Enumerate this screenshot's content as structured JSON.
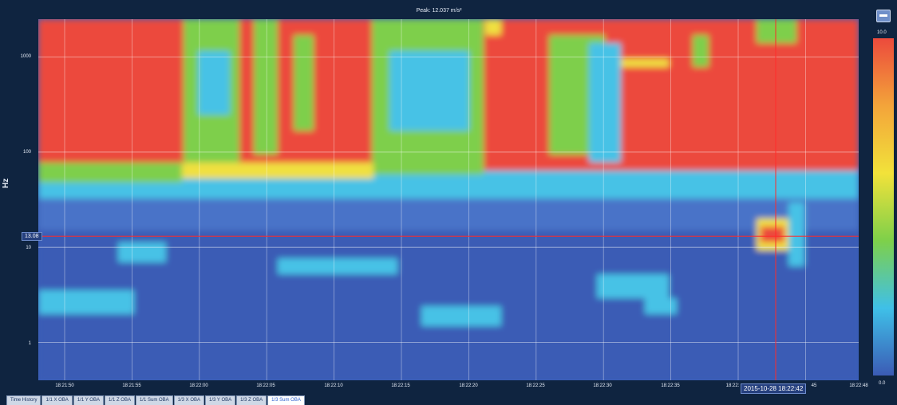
{
  "chart_data": {
    "type": "heatmap",
    "title": "Peak: 12.037 m/s²",
    "ylabel": "Hz",
    "yscale": "log",
    "ylim": [
      0.4,
      2500
    ],
    "yticks": [
      "1000",
      "100",
      "10",
      "1"
    ],
    "ytick_values": [
      1000,
      100,
      10,
      1
    ],
    "xticks": [
      "18:21:50",
      "18:21:55",
      "18:22:00",
      "18:22:05",
      "18:22:10",
      "18:22:15",
      "18:22:20",
      "18:22:25",
      "18:22:30",
      "18:22:35",
      "18:22:",
      "45",
      "18:22:48"
    ],
    "colorbar": {
      "min": "0.0",
      "max": "10.0",
      "colors": [
        "#3b5bb5",
        "#3fc0e8",
        "#7ed04a",
        "#f2e23a",
        "#f3a43a",
        "#ec4a3c"
      ]
    },
    "cursor": {
      "y_label": "13.08",
      "x_label": "2015-10-28  18:22:42",
      "frequency": 13.08,
      "time": "18:22:42"
    },
    "red_blocks": [
      {
        "t0": "18:21:48",
        "t1": "18:22:00"
      },
      {
        "t0": "18:22:06",
        "t1": "18:22:14"
      },
      {
        "t0": "18:22:22",
        "t1": "18:22:30"
      },
      {
        "t0": "18:22:31",
        "t1": "18:22:48"
      }
    ]
  },
  "tabs": [
    "Time History",
    "1/1 X OBA",
    "1/1 Y OBA",
    "1/1 Z OBA",
    "1/1 Sum OBA",
    "1/3 X OBA",
    "1/3 Y OBA",
    "1/3 Z OBA",
    "1/3 Sum OBA"
  ],
  "active_tab": "1/3 Sum OBA"
}
